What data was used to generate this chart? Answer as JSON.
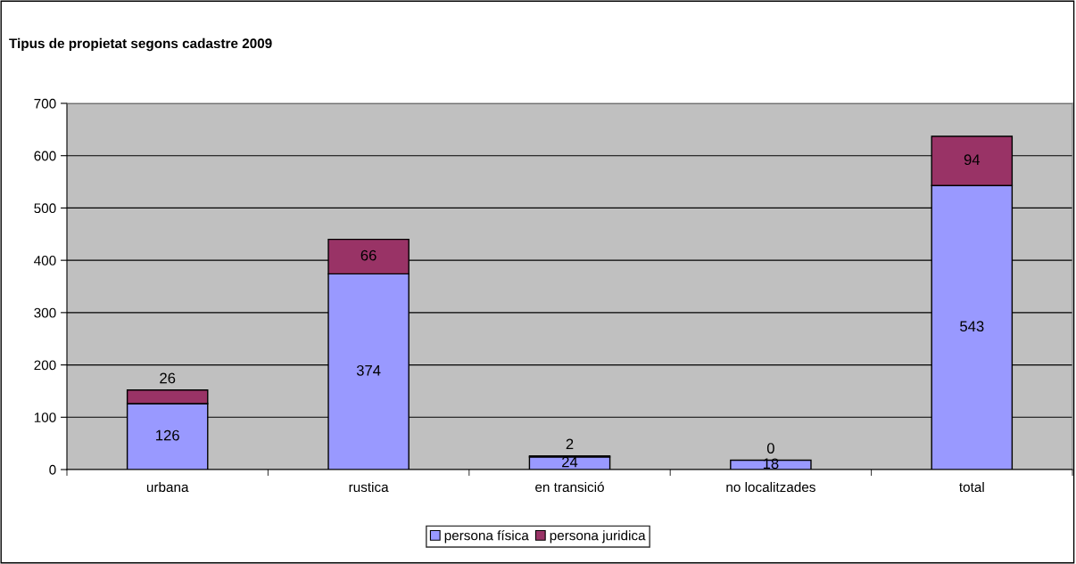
{
  "chart_data": {
    "type": "bar",
    "title": "Tipus de propietat segons cadastre 2009",
    "categories": [
      "urbana",
      "rustica",
      "en transició",
      "no localitzades",
      "total"
    ],
    "series": [
      {
        "name": "persona física",
        "color": "#9999ff",
        "values": [
          126,
          374,
          24,
          18,
          543
        ]
      },
      {
        "name": "persona juridica",
        "color": "#993366",
        "values": [
          26,
          66,
          2,
          0,
          94
        ]
      }
    ],
    "stacked": true,
    "data_labels": true,
    "ylim": [
      0,
      700
    ],
    "yticks": [
      0,
      100,
      200,
      300,
      400,
      500,
      600,
      700
    ],
    "grid": "y",
    "legend": "bottom"
  }
}
